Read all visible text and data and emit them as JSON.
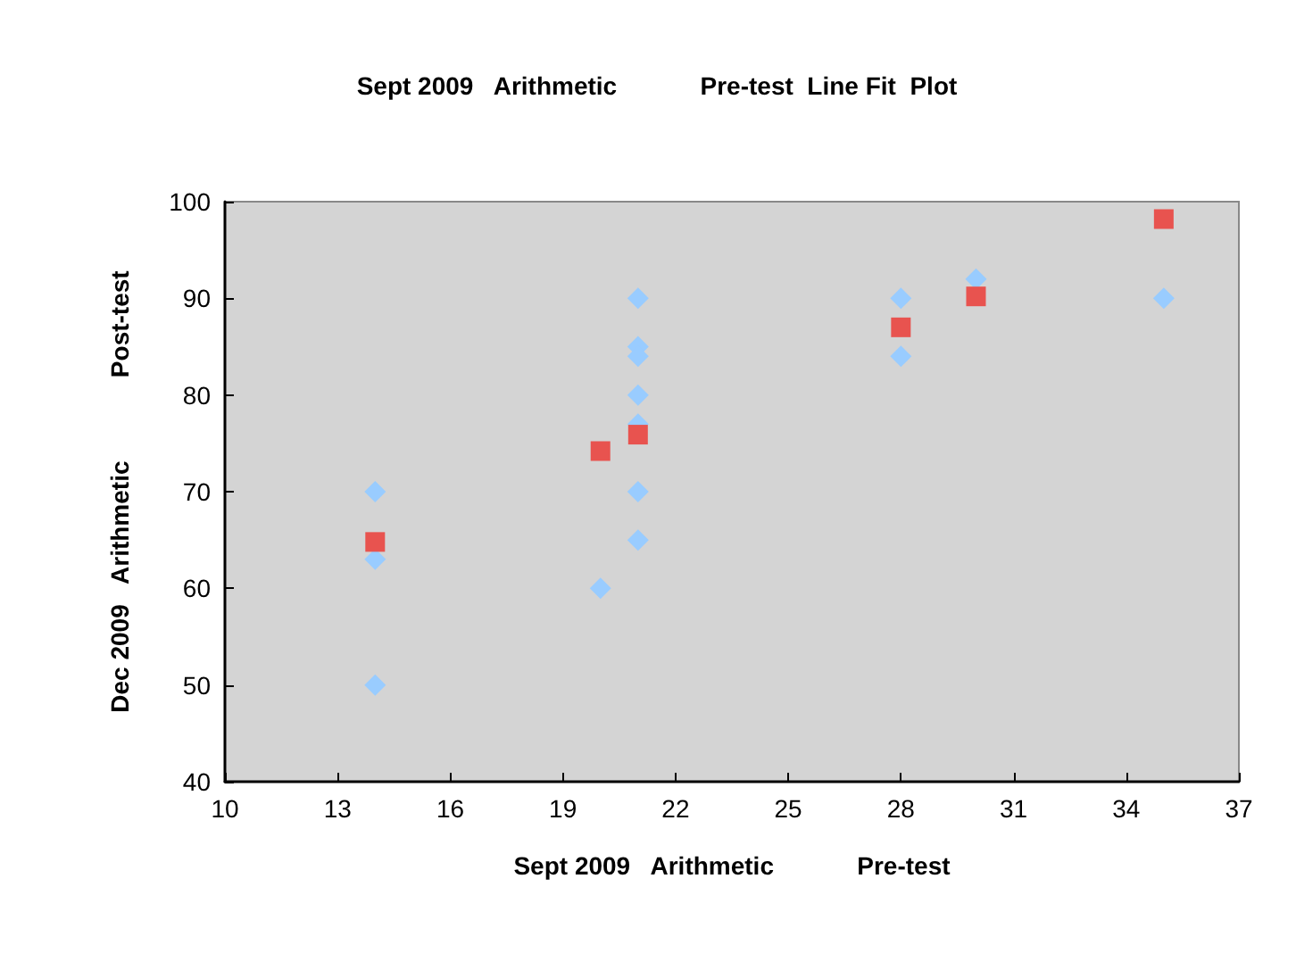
{
  "chart_data": {
    "type": "scatter",
    "title": "Sept 2009   Arithmetic            Pre-test  Line Fit  Plot",
    "xlabel": "Sept 2009   Arithmetic            Pre-test",
    "ylabel": "Dec 2009   Arithmetic            Post-test",
    "xlim": [
      10,
      37
    ],
    "xticks": [
      10,
      13,
      16,
      19,
      22,
      25,
      28,
      31,
      34,
      37
    ],
    "ylim": [
      40,
      100
    ],
    "yticks": [
      40,
      50,
      60,
      70,
      80,
      90,
      100
    ],
    "grid": false,
    "series": [
      {
        "color": "#99ccff",
        "marker": "diamond",
        "x": [
          14,
          14,
          14,
          20,
          21,
          21,
          21,
          21,
          21,
          21,
          21,
          28,
          28,
          30,
          35
        ],
        "values": [
          70,
          63,
          50,
          60,
          90,
          85,
          84,
          80,
          77,
          70,
          65,
          90,
          84,
          92,
          90
        ]
      },
      {
        "color": "#e8534f",
        "marker": "square",
        "x": [
          14,
          20,
          21,
          28,
          30,
          35
        ],
        "values": [
          64.8,
          74.2,
          75.9,
          87,
          90.2,
          98.2
        ]
      }
    ]
  }
}
